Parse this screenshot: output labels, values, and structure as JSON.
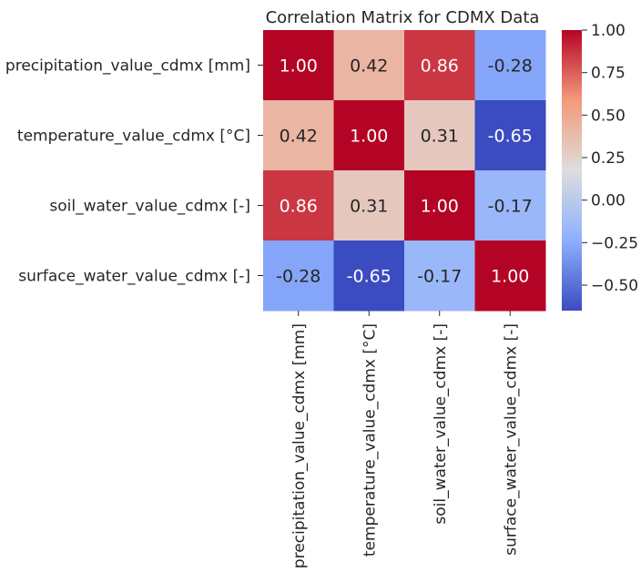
{
  "chart_data": {
    "type": "heatmap",
    "title": "Correlation Matrix for CDMX Data",
    "rows": [
      "precipitation_value_cdmx [mm]",
      "temperature_value_cdmx [°C]",
      "soil_water_value_cdmx [-]",
      "surface_water_value_cdmx [-]"
    ],
    "columns": [
      "precipitation_value_cdmx [mm]",
      "temperature_value_cdmx [°C]",
      "soil_water_value_cdmx [-]",
      "surface_water_value_cdmx [-]"
    ],
    "values": [
      [
        1.0,
        0.42,
        0.86,
        -0.28
      ],
      [
        0.42,
        1.0,
        0.31,
        -0.65
      ],
      [
        0.86,
        0.31,
        1.0,
        -0.17
      ],
      [
        -0.28,
        -0.65,
        -0.17,
        1.0
      ]
    ],
    "cell_labels": [
      [
        "1.00",
        "0.42",
        "0.86",
        "-0.28"
      ],
      [
        "0.42",
        "1.00",
        "0.31",
        "-0.65"
      ],
      [
        "0.86",
        "0.31",
        "1.00",
        "-0.17"
      ],
      [
        "-0.28",
        "-0.65",
        "-0.17",
        "1.00"
      ]
    ],
    "colormap": "coolwarm",
    "vmin": -0.65,
    "vmax": 1.0,
    "colorbar": {
      "ticks": [
        1.0,
        0.75,
        0.5,
        0.25,
        0.0,
        -0.25,
        -0.5
      ],
      "tick_labels": [
        "1.00",
        "0.75",
        "0.50",
        "0.25",
        "0.00",
        "−0.25",
        "−0.50"
      ]
    }
  }
}
